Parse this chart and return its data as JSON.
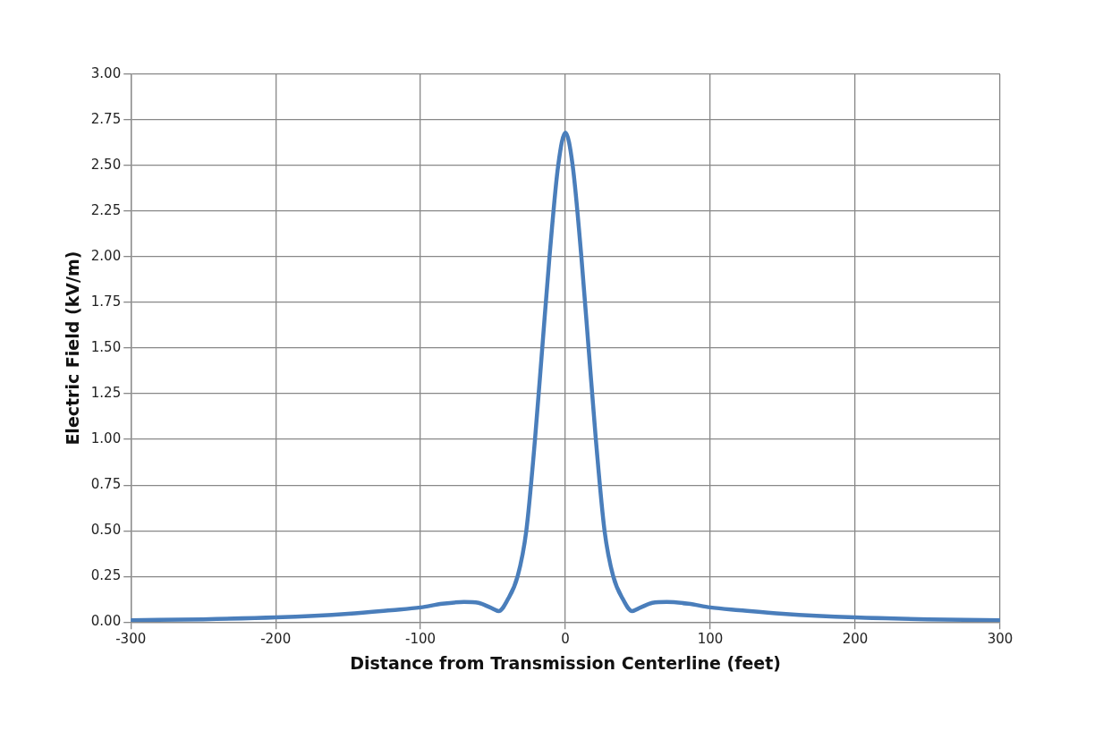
{
  "chart_data": {
    "type": "line",
    "xlabel": "Distance from Transmission Centerline (feet)",
    "ylabel": "Electric Field (kV/m)",
    "xlim": [
      -300,
      300
    ],
    "xticks": [
      -300,
      -200,
      -100,
      0,
      100,
      200,
      300
    ],
    "ylim": [
      0,
      3
    ],
    "yticks": [
      {
        "value": 0,
        "label": "0.00"
      },
      {
        "value": 0.25,
        "label": "0.25"
      },
      {
        "value": 0.5,
        "label": "0.50"
      },
      {
        "value": 0.75,
        "label": "0.75"
      },
      {
        "value": 1,
        "label": "1.00"
      },
      {
        "value": 1.25,
        "label": "1.25"
      },
      {
        "value": 1.5,
        "label": "1.50"
      },
      {
        "value": 1.75,
        "label": "1.75"
      },
      {
        "value": 2,
        "label": "2.00"
      },
      {
        "value": 2.25,
        "label": "2.25"
      },
      {
        "value": 2.5,
        "label": "2.50"
      },
      {
        "value": 2.75,
        "label": "2.75"
      },
      {
        "value": 3,
        "label": "3.00"
      }
    ],
    "grid": true,
    "legend": false,
    "marker": "none",
    "line_style": "solid",
    "series": [
      {
        "color": "#4a7ebb",
        "x": [
          -300,
          -250,
          -200,
          -150,
          -120,
          -100,
          -85,
          -70,
          -60,
          -52,
          -46,
          -40,
          -33,
          -27,
          -21,
          -16,
          -11,
          -5,
          0,
          5,
          11,
          16,
          21,
          27,
          33,
          40,
          46,
          52,
          60,
          70,
          85,
          100,
          120,
          150,
          200,
          250,
          300
        ],
        "values": [
          0.01,
          0.015,
          0.025,
          0.045,
          0.065,
          0.08,
          0.1,
          0.11,
          0.105,
          0.08,
          0.06,
          0.12,
          0.25,
          0.5,
          1.0,
          1.5,
          2.0,
          2.5,
          2.68,
          2.5,
          2.0,
          1.5,
          1.0,
          0.5,
          0.25,
          0.12,
          0.06,
          0.08,
          0.105,
          0.11,
          0.1,
          0.08,
          0.065,
          0.045,
          0.025,
          0.015,
          0.01
        ]
      }
    ]
  }
}
